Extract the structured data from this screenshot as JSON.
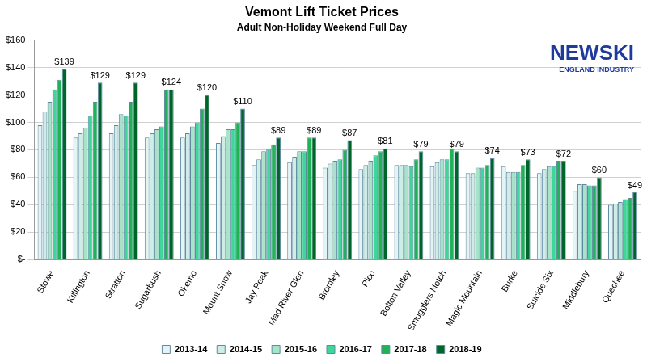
{
  "chart_data": {
    "type": "bar",
    "title": "Vemont Lift Ticket Prices",
    "subtitle": "Adult Non-Holiday Weekend Full Day",
    "logo": {
      "line1": "NEWSKI",
      "line2": "ENGLAND INDUSTRY"
    },
    "categories": [
      "Stowe",
      "Killington",
      "Stratton",
      "Sugarbush",
      "Okemo",
      "Mount Snow",
      "Jay Peak",
      "Mad River Glen",
      "Bromley",
      "Pico",
      "Bolton Valley",
      "Smugglers Notch",
      "Magic Mountain",
      "Burke",
      "Suicide Six",
      "Middlebury",
      "Quechee"
    ],
    "series": [
      {
        "name": "2013-14",
        "color": "#e4f4f6",
        "values": [
          98,
          89,
          92,
          89,
          89,
          85,
          69,
          71,
          67,
          66,
          69,
          68,
          63,
          68,
          63,
          50,
          40
        ]
      },
      {
        "name": "2014-15",
        "color": "#cdeee6",
        "values": [
          108,
          92,
          98,
          92,
          92,
          90,
          73,
          75,
          70,
          69,
          69,
          71,
          63,
          64,
          66,
          55,
          41
        ]
      },
      {
        "name": "2015-16",
        "color": "#a6e4c8",
        "values": [
          115,
          96,
          106,
          95,
          97,
          95,
          79,
          79,
          72,
          72,
          69,
          73,
          67,
          64,
          68,
          55,
          42
        ]
      },
      {
        "name": "2016-17",
        "color": "#3fd69c",
        "values": [
          124,
          105,
          105,
          97,
          100,
          95,
          81,
          79,
          73,
          76,
          68,
          73,
          67,
          64,
          68,
          54,
          44
        ]
      },
      {
        "name": "2017-18",
        "color": "#20b257",
        "values": [
          131,
          115,
          115,
          124,
          110,
          100,
          84,
          89,
          80,
          79,
          73,
          81,
          69,
          69,
          72,
          54,
          45
        ]
      },
      {
        "name": "2018-19",
        "color": "#00652b",
        "values": [
          139,
          129,
          129,
          124,
          120,
          110,
          89,
          89,
          87,
          81,
          79,
          79,
          74,
          73,
          72,
          60,
          49
        ],
        "data_labels": true,
        "value_labels": [
          "$139",
          "$129",
          "$129",
          "$124",
          "$120",
          "$110",
          "$89",
          "$89",
          "$87",
          "$81",
          "$79",
          "$79",
          "$74",
          "$73",
          "$72",
          "$60",
          "$49"
        ]
      }
    ],
    "ylim": [
      0,
      160
    ],
    "yticks": [
      {
        "value": 0,
        "label": "$-"
      },
      {
        "value": 20,
        "label": "$20"
      },
      {
        "value": 40,
        "label": "$40"
      },
      {
        "value": 60,
        "label": "$60"
      },
      {
        "value": 80,
        "label": "$80"
      },
      {
        "value": 100,
        "label": "$100"
      },
      {
        "value": 120,
        "label": "$120"
      },
      {
        "value": 140,
        "label": "$140"
      },
      {
        "value": 160,
        "label": "$160"
      }
    ],
    "grid": true,
    "legend": "bottom"
  }
}
